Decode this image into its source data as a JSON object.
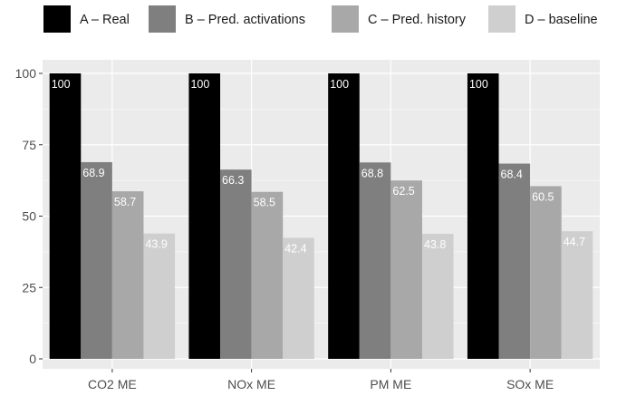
{
  "chart_data": {
    "type": "bar",
    "categories": [
      "CO2 ME",
      "NOx ME",
      "PM ME",
      "SOx ME"
    ],
    "series": [
      {
        "name": "A – Real",
        "color": "#000000",
        "label_color": "#ffffff",
        "values": [
          100,
          100,
          100,
          100
        ]
      },
      {
        "name": "B – Pred. activations",
        "color": "#7f7f7f",
        "label_color": "#ffffff",
        "values": [
          68.9,
          66.3,
          68.8,
          68.4
        ]
      },
      {
        "name": "C – Pred. history",
        "color": "#a8a8a8",
        "label_color": "#ffffff",
        "values": [
          58.7,
          58.5,
          62.5,
          60.5
        ]
      },
      {
        "name": "D – baseline",
        "color": "#cfcfcf",
        "label_color": "#ffffff",
        "values": [
          43.9,
          42.4,
          43.8,
          44.7
        ]
      }
    ],
    "ylim": [
      0,
      100
    ],
    "yticks": [
      0,
      25,
      50,
      75,
      100
    ],
    "title": "",
    "xlabel": "",
    "ylabel": "",
    "grid": true,
    "legend_position": "top",
    "panel_background": "#ebebeb",
    "grid_color": "#ffffff"
  }
}
